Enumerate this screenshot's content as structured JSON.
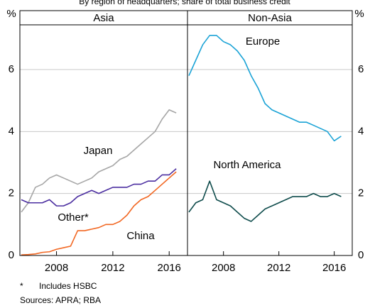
{
  "subtitle": "By region of headquarters; share of total business credit",
  "chart_data": [
    {
      "type": "line",
      "title": "Asia",
      "y_label": "%",
      "x": [
        2005.5,
        2006,
        2006.5,
        2007,
        2007.5,
        2008,
        2008.5,
        2009,
        2009.5,
        2010,
        2010.5,
        2011,
        2011.5,
        2012,
        2012.5,
        2013,
        2013.5,
        2014,
        2014.5,
        2015,
        2015.5,
        2016,
        2016.5
      ],
      "series": [
        {
          "name": "Japan",
          "color": "#a6a6a6",
          "values": [
            1.4,
            1.7,
            2.2,
            2.3,
            2.5,
            2.6,
            2.5,
            2.4,
            2.3,
            2.4,
            2.5,
            2.7,
            2.8,
            2.9,
            3.1,
            3.2,
            3.4,
            3.6,
            3.8,
            4.0,
            4.4,
            4.7,
            4.6
          ]
        },
        {
          "name": "Other*",
          "color": "#4b2ea0",
          "values": [
            1.8,
            1.7,
            1.7,
            1.7,
            1.8,
            1.6,
            1.6,
            1.7,
            1.9,
            2.0,
            2.1,
            2.0,
            2.1,
            2.2,
            2.2,
            2.2,
            2.3,
            2.3,
            2.4,
            2.4,
            2.6,
            2.6,
            2.8
          ]
        },
        {
          "name": "China",
          "color": "#f26722",
          "values": [
            0.02,
            0.03,
            0.05,
            0.1,
            0.12,
            0.2,
            0.25,
            0.3,
            0.8,
            0.8,
            0.85,
            0.9,
            1.0,
            1.0,
            1.1,
            1.3,
            1.6,
            1.8,
            1.9,
            2.1,
            2.3,
            2.5,
            2.7
          ]
        }
      ],
      "xlim": [
        2005.4,
        2017.3
      ],
      "xticks": [
        2008,
        2012,
        2016
      ],
      "ylim": [
        0,
        7.9
      ],
      "yticks": [
        0,
        2,
        4,
        6
      ],
      "grid": true
    },
    {
      "type": "line",
      "title": "Non-Asia",
      "y_label": "%",
      "x": [
        2005.5,
        2006,
        2006.5,
        2007,
        2007.5,
        2008,
        2008.5,
        2009,
        2009.5,
        2010,
        2010.5,
        2011,
        2011.5,
        2012,
        2012.5,
        2013,
        2013.5,
        2014,
        2014.5,
        2015,
        2015.5,
        2016,
        2016.5
      ],
      "series": [
        {
          "name": "Europe",
          "color": "#1ba3d6",
          "values": [
            5.8,
            6.3,
            6.8,
            7.1,
            7.1,
            6.9,
            6.8,
            6.6,
            6.3,
            5.8,
            5.4,
            4.9,
            4.7,
            4.6,
            4.5,
            4.4,
            4.3,
            4.3,
            4.2,
            4.1,
            4.0,
            3.7,
            3.85
          ]
        },
        {
          "name": "North America",
          "color": "#0f4c4c",
          "values": [
            1.4,
            1.7,
            1.8,
            2.4,
            1.8,
            1.7,
            1.6,
            1.4,
            1.2,
            1.1,
            1.3,
            1.5,
            1.6,
            1.7,
            1.8,
            1.9,
            1.9,
            1.9,
            2.0,
            1.9,
            1.9,
            2.0,
            1.9
          ]
        }
      ],
      "xlim": [
        2005.4,
        2017.3
      ],
      "xticks": [
        2008,
        2012,
        2016
      ],
      "ylim": [
        0,
        7.9
      ],
      "yticks": [
        0,
        2,
        4,
        6
      ],
      "grid": true
    }
  ],
  "footnote": {
    "symbol": "*",
    "text": "Includes HSBC"
  },
  "sources": "Sources:   APRA; RBA"
}
